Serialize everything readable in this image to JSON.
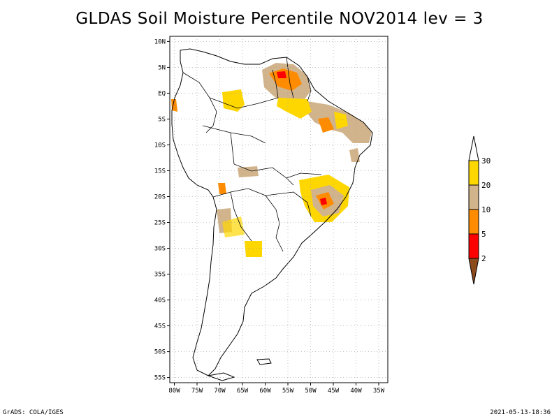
{
  "title": "GLDAS Soil Moisture Percentile NOV2014 lev = 3",
  "map": {
    "lat_ticks": [
      "10N",
      "5N",
      "EQ",
      "5S",
      "10S",
      "15S",
      "20S",
      "25S",
      "30S",
      "35S",
      "40S",
      "45S",
      "50S",
      "55S"
    ],
    "lon_ticks": [
      "80W",
      "75W",
      "70W",
      "65W",
      "60W",
      "55W",
      "50W",
      "45W",
      "40W",
      "35W"
    ],
    "extent": {
      "lon_min": -81,
      "lon_max": -33,
      "lat_min": -56,
      "lat_max": 11
    },
    "gridlines": true
  },
  "colorbar": {
    "labels": [
      "2",
      "5",
      "10",
      "20",
      "30"
    ],
    "colors": {
      "below_2": "#8b4a1c",
      "2_5": "#ff0000",
      "5_10": "#ff8c00",
      "10_20": "#d2b48c",
      "20_30": "#ffd700",
      "above_30": "#ffffff"
    }
  },
  "footer": {
    "left": "GrADS: COLA/IGES",
    "right": "2021-05-13-18:36"
  }
}
